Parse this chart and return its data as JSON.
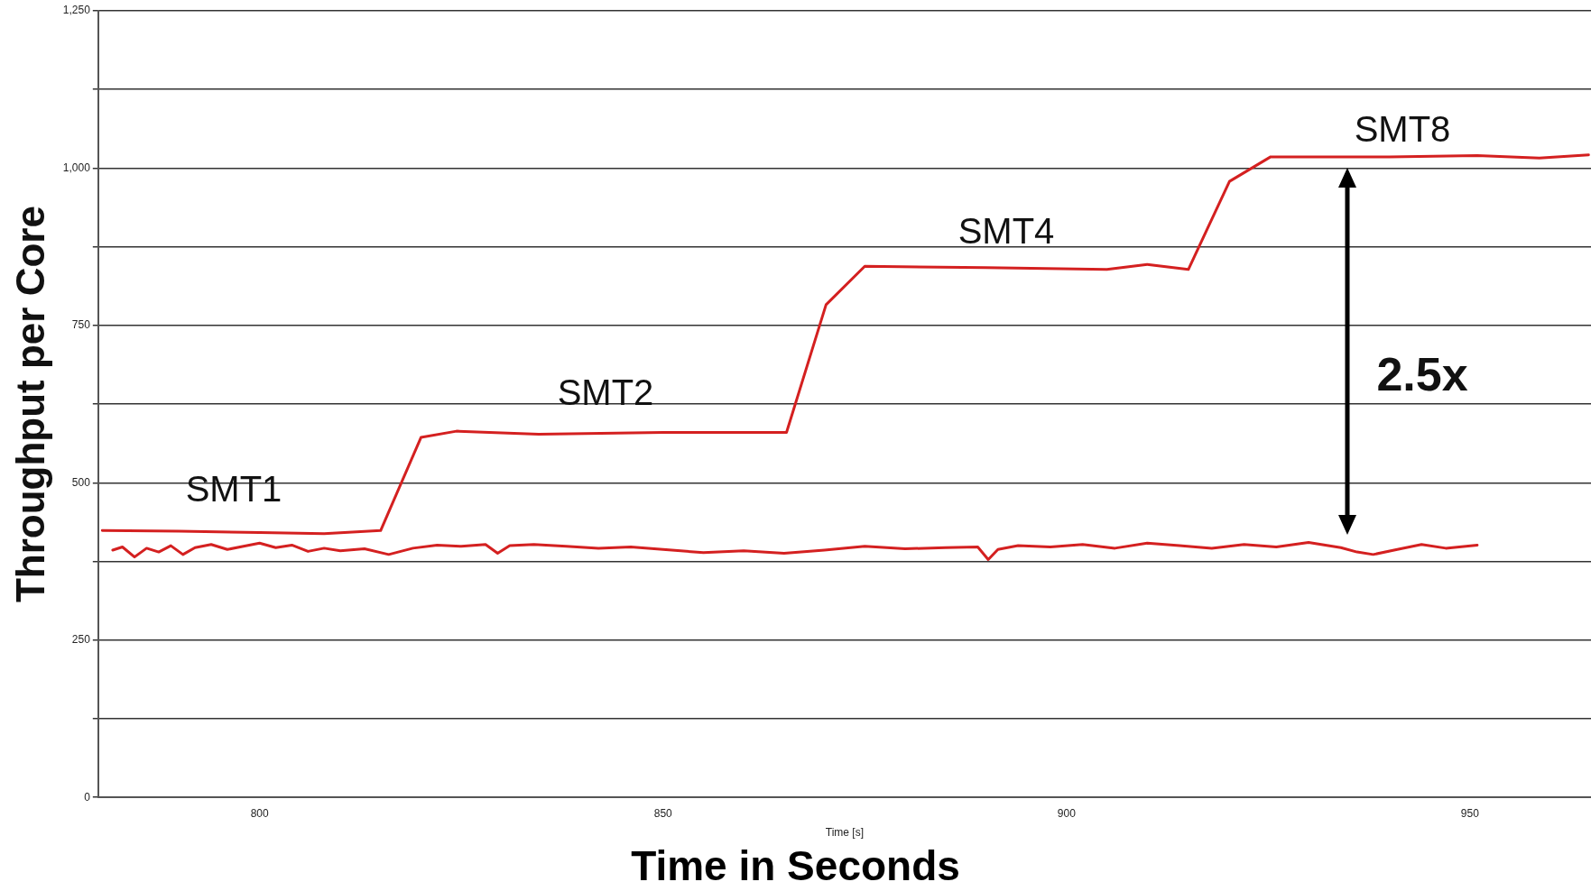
{
  "chart_data": {
    "type": "line",
    "ylabel": "Throughput per Core",
    "xlabel": "Time [s]",
    "xlim": [
      780,
      965
    ],
    "xticks": [
      800,
      850,
      900,
      950
    ],
    "ylim": [
      0,
      1250
    ],
    "yticks": [
      0,
      {
        "value": 125,
        "label": null
      },
      250,
      {
        "value": 375,
        "label": null
      },
      500,
      {
        "value": 625,
        "label": null
      },
      750,
      {
        "value": 875,
        "label": null
      },
      {
        "value": 1000,
        "label": "1,000"
      },
      {
        "value": 1125,
        "label": null
      },
      {
        "value": 1250,
        "label": "1,250"
      }
    ],
    "grid": "y",
    "legend": false,
    "marker": "none",
    "line_style": "solid",
    "series": [
      {
        "color": "#d42020",
        "x": [
          780.5,
          790,
          800,
          808,
          815,
          820,
          824.4,
          834.6,
          850,
          865.3,
          870.2,
          875,
          890,
          905,
          910,
          915.1,
          920.2,
          925.3,
          940,
          950.9,
          958.6,
          964.7
        ],
        "values": [
          424,
          423,
          421,
          419,
          424,
          572,
          582,
          577,
          580,
          580,
          783,
          844,
          842,
          839,
          847,
          839,
          979,
          1018,
          1018,
          1020,
          1016,
          1021
        ]
      },
      {
        "color": "#d42020",
        "x": [
          781.8,
          783,
          784.5,
          786,
          787.5,
          789,
          790.5,
          792,
          794,
          796,
          798,
          800,
          802,
          804,
          806,
          808,
          810,
          813,
          816,
          819,
          822,
          825,
          828,
          829.5,
          831,
          834,
          838,
          842,
          846,
          850,
          855,
          860,
          865,
          870,
          875,
          880,
          885,
          889,
          890.3,
          891.5,
          894,
          898,
          902,
          906,
          910,
          914,
          918,
          922,
          926,
          930,
          934,
          936,
          938,
          941,
          944,
          947,
          950.9
        ],
        "values": [
          393,
          398,
          382,
          396,
          390,
          400,
          386,
          397,
          402,
          394,
          399,
          404,
          397,
          401,
          391,
          396,
          392,
          395,
          386,
          396,
          401,
          399,
          402,
          388,
          400,
          402,
          399,
          396,
          398,
          394,
          389,
          392,
          388,
          393,
          399,
          395,
          397,
          398,
          378,
          394,
          400,
          398,
          402,
          396,
          404,
          400,
          396,
          402,
          398,
          405,
          397,
          390,
          386,
          394,
          402,
          396,
          401
        ]
      }
    ],
    "annotations": [
      "SMT1",
      "SMT2",
      "SMT4",
      "SMT8",
      "2.5x",
      "Time in Seconds"
    ]
  }
}
